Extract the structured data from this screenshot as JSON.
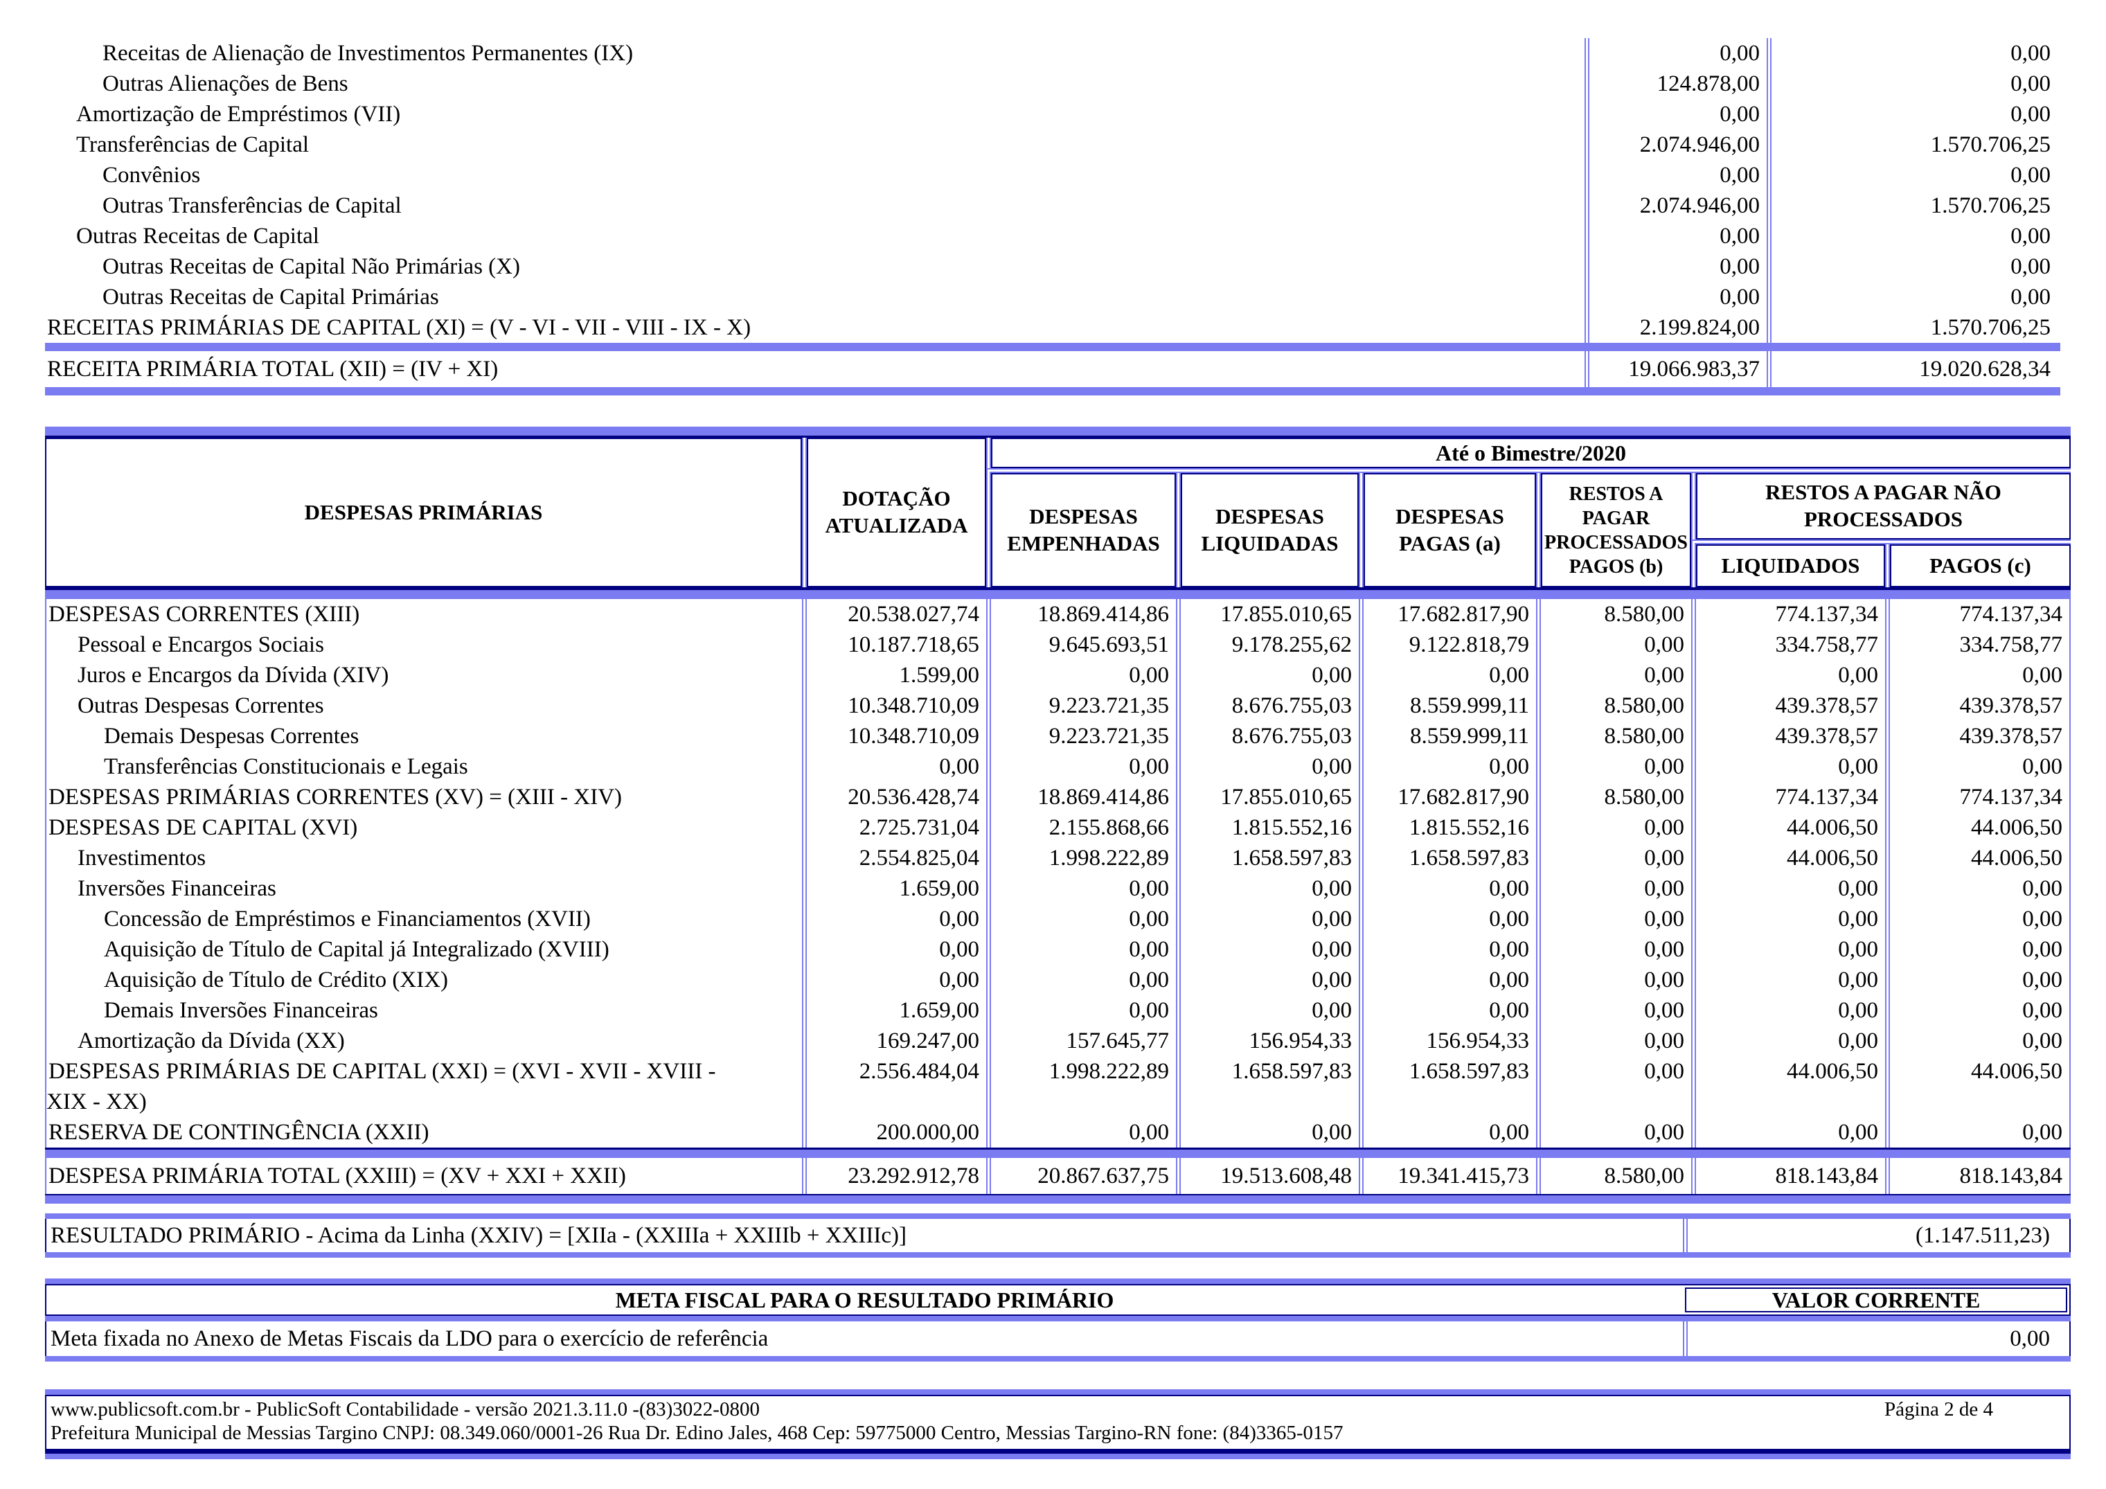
{
  "colors": {
    "accent_blue": "#7b7bf2",
    "line_navy": "#000080"
  },
  "receitas": {
    "rows": [
      {
        "label": "Receitas de Alienação de Investimentos Permanentes (IX)",
        "indent": 2,
        "v1": "0,00",
        "v2": "0,00"
      },
      {
        "label": "Outras Alienações de Bens",
        "indent": 2,
        "v1": "124.878,00",
        "v2": "0,00"
      },
      {
        "label": "Amortização de Empréstimos (VII)",
        "indent": 1,
        "v1": "0,00",
        "v2": "0,00"
      },
      {
        "label": "Transferências de Capital",
        "indent": 1,
        "v1": "2.074.946,00",
        "v2": "1.570.706,25"
      },
      {
        "label": "Convênios",
        "indent": 2,
        "v1": "0,00",
        "v2": "0,00"
      },
      {
        "label": "Outras Transferências de Capital",
        "indent": 2,
        "v1": "2.074.946,00",
        "v2": "1.570.706,25"
      },
      {
        "label": "Outras Receitas de Capital",
        "indent": 1,
        "v1": "0,00",
        "v2": "0,00"
      },
      {
        "label": "Outras Receitas de Capital Não Primárias (X)",
        "indent": 2,
        "v1": "0,00",
        "v2": "0,00"
      },
      {
        "label": "Outras Receitas de Capital Primárias",
        "indent": 2,
        "v1": "0,00",
        "v2": "0,00"
      },
      {
        "label": "RECEITAS PRIMÁRIAS DE CAPITAL (XI) = (V - VI - VII - VIII - IX - X)",
        "indent": 0,
        "v1": "2.199.824,00",
        "v2": "1.570.706,25"
      }
    ],
    "total": {
      "label": "RECEITA PRIMÁRIA TOTAL (XII) = (IV + XI)",
      "v1": "19.066.983,37",
      "v2": "19.020.628,34"
    }
  },
  "despesas": {
    "title_col": "DESPESAS PRIMÁRIAS",
    "dotacao_header": "DOTAÇÃO ATUALIZADA",
    "period_header": "Até o Bimestre/2020",
    "col_empenhadas": "DESPESAS EMPENHADAS",
    "col_liquidadas": "DESPESAS LIQUIDADAS",
    "col_pagas": "DESPESAS PAGAS (a)",
    "col_restos_processados": "RESTOS A PAGAR PROCESSADOS PAGOS (b)",
    "col_restos_nao_processados": "RESTOS A PAGAR NÃO PROCESSADOS",
    "sub_liquidados": "LIQUIDADOS",
    "sub_pagos": "PAGOS (c)",
    "rows": [
      {
        "label": "DESPESAS CORRENTES (XIII)",
        "indent": 0,
        "values": [
          "20.538.027,74",
          "18.869.414,86",
          "17.855.010,65",
          "17.682.817,90",
          "8.580,00",
          "774.137,34",
          "774.137,34"
        ]
      },
      {
        "label": "Pessoal e Encargos Sociais",
        "indent": 1,
        "values": [
          "10.187.718,65",
          "9.645.693,51",
          "9.178.255,62",
          "9.122.818,79",
          "0,00",
          "334.758,77",
          "334.758,77"
        ]
      },
      {
        "label": "Juros e Encargos da Dívida (XIV)",
        "indent": 1,
        "values": [
          "1.599,00",
          "0,00",
          "0,00",
          "0,00",
          "0,00",
          "0,00",
          "0,00"
        ]
      },
      {
        "label": "Outras Despesas Correntes",
        "indent": 1,
        "values": [
          "10.348.710,09",
          "9.223.721,35",
          "8.676.755,03",
          "8.559.999,11",
          "8.580,00",
          "439.378,57",
          "439.378,57"
        ]
      },
      {
        "label": "Demais Despesas Correntes",
        "indent": 2,
        "values": [
          "10.348.710,09",
          "9.223.721,35",
          "8.676.755,03",
          "8.559.999,11",
          "8.580,00",
          "439.378,57",
          "439.378,57"
        ]
      },
      {
        "label": "Transferências Constitucionais e Legais",
        "indent": 2,
        "values": [
          "0,00",
          "0,00",
          "0,00",
          "0,00",
          "0,00",
          "0,00",
          "0,00"
        ]
      },
      {
        "label": "DESPESAS PRIMÁRIAS CORRENTES (XV) = (XIII - XIV)",
        "indent": 0,
        "values": [
          "20.536.428,74",
          "18.869.414,86",
          "17.855.010,65",
          "17.682.817,90",
          "8.580,00",
          "774.137,34",
          "774.137,34"
        ]
      },
      {
        "label": "DESPESAS DE CAPITAL (XVI)",
        "indent": 0,
        "values": [
          "2.725.731,04",
          "2.155.868,66",
          "1.815.552,16",
          "1.815.552,16",
          "0,00",
          "44.006,50",
          "44.006,50"
        ]
      },
      {
        "label": "Investimentos",
        "indent": 1,
        "values": [
          "2.554.825,04",
          "1.998.222,89",
          "1.658.597,83",
          "1.658.597,83",
          "0,00",
          "44.006,50",
          "44.006,50"
        ]
      },
      {
        "label": "Inversões Financeiras",
        "indent": 1,
        "values": [
          "1.659,00",
          "0,00",
          "0,00",
          "0,00",
          "0,00",
          "0,00",
          "0,00"
        ]
      },
      {
        "label": "Concessão de Empréstimos e Financiamentos (XVII)",
        "indent": 2,
        "values": [
          "0,00",
          "0,00",
          "0,00",
          "0,00",
          "0,00",
          "0,00",
          "0,00"
        ]
      },
      {
        "label": "Aquisição de Título de Capital já Integralizado (XVIII)",
        "indent": 2,
        "values": [
          "0,00",
          "0,00",
          "0,00",
          "0,00",
          "0,00",
          "0,00",
          "0,00"
        ]
      },
      {
        "label": "Aquisição de Título de Crédito (XIX)",
        "indent": 2,
        "values": [
          "0,00",
          "0,00",
          "0,00",
          "0,00",
          "0,00",
          "0,00",
          "0,00"
        ]
      },
      {
        "label": "Demais Inversões Financeiras",
        "indent": 2,
        "values": [
          "1.659,00",
          "0,00",
          "0,00",
          "0,00",
          "0,00",
          "0,00",
          "0,00"
        ]
      },
      {
        "label": "Amortização da Dívida (XX)",
        "indent": 1,
        "values": [
          "169.247,00",
          "157.645,77",
          "156.954,33",
          "156.954,33",
          "0,00",
          "0,00",
          "0,00"
        ]
      },
      {
        "label": "DESPESAS PRIMÁRIAS DE CAPITAL (XXI) = (XVI - XVII - XVIII - XIX - XX)",
        "indent": 0,
        "values": [
          "2.556.484,04",
          "1.998.222,89",
          "1.658.597,83",
          "1.658.597,83",
          "0,00",
          "44.006,50",
          "44.006,50"
        ]
      },
      {
        "label": "RESERVA DE CONTINGÊNCIA (XXII)",
        "indent": 0,
        "values": [
          "200.000,00",
          "0,00",
          "0,00",
          "0,00",
          "0,00",
          "0,00",
          "0,00"
        ]
      }
    ],
    "total": {
      "label": "DESPESA PRIMÁRIA TOTAL (XXIII) = (XV + XXI + XXII)",
      "values": [
        "23.292.912,78",
        "20.867.637,75",
        "19.513.608,48",
        "19.341.415,73",
        "8.580,00",
        "818.143,84",
        "818.143,84"
      ]
    }
  },
  "resultado": {
    "label": "RESULTADO PRIMÁRIO - Acima da Linha (XXIV) = [XIIa - (XXIIIa + XXIIIb + XXIIIc)]",
    "value": "(1.147.511,23)"
  },
  "meta_fiscal": {
    "header": "META FISCAL PARA O RESULTADO PRIMÁRIO",
    "value_header": "VALOR CORRENTE",
    "row_label": "Meta fixada no Anexo de Metas Fiscais da LDO para o exercício de referência",
    "row_value": "0,00"
  },
  "footer": {
    "line1": "www.publicsoft.com.br - PublicSoft Contabilidade - versão 2021.3.11.0 -(83)3022-0800",
    "page": "Página 2 de 4",
    "line2": "Prefeitura Municipal de Messias Targino CNPJ: 08.349.060/0001-26 Rua Dr. Edino Jales, 468 Cep: 59775000 Centro, Messias Targino-RN fone: (84)3365-0157"
  }
}
